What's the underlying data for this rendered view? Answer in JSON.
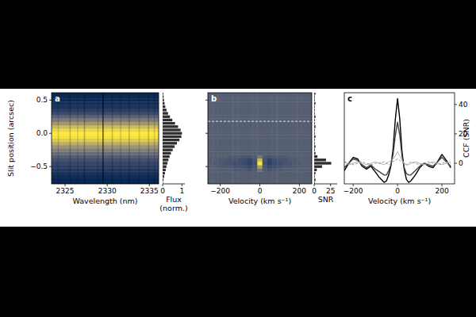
{
  "chart_data": [
    {
      "type": "heatmap",
      "panel": "a",
      "x_label": "Wavelength (nm)",
      "y_label": "Slit position (arcsec)",
      "xlim": [
        2323.4,
        2336.1
      ],
      "xticks": [
        2325,
        2330,
        2335
      ],
      "ylim": [
        -0.76,
        0.61
      ],
      "yticks": [
        {
          "value": 0.5,
          "label": "0.5"
        },
        {
          "value": 0,
          "label": "0.0"
        },
        {
          "value": -0.5,
          "label": "−0.5"
        }
      ],
      "color_range": [
        0,
        1
      ],
      "slit_positions": [
        -0.75,
        -0.7,
        -0.65,
        -0.6,
        -0.55,
        -0.5,
        -0.45,
        -0.4,
        -0.35,
        -0.3,
        -0.25,
        -0.2,
        -0.15,
        -0.1,
        -0.05,
        0,
        0.05,
        0.1,
        0.15,
        0.2,
        0.25,
        0.3,
        0.35,
        0.4,
        0.45,
        0.5,
        0.55,
        0.6
      ],
      "flux": [
        0.02,
        0.04,
        0.08,
        0.12,
        0.16,
        0.2,
        0.25,
        0.3,
        0.36,
        0.43,
        0.52,
        0.62,
        0.74,
        0.87,
        0.97,
        1.0,
        0.93,
        0.8,
        0.64,
        0.5,
        0.38,
        0.28,
        0.2,
        0.14,
        0.1,
        0.07,
        0.05,
        0.04
      ],
      "telluric_lines": {
        "wavelength": [
          2324.2,
          2325.6,
          2326.5,
          2327.3,
          2328.9,
          2329.5,
          2330.6,
          2331.6,
          2332.6,
          2333.8,
          2334.9,
          2335.6
        ],
        "depth": [
          0.15,
          0.2,
          0.12,
          0.25,
          0.15,
          0.6,
          0.2,
          0.15,
          0.2,
          0.15,
          0.2,
          0.15
        ]
      },
      "profile": {
        "type": "bar",
        "orientation": "horizontal",
        "x_label": "Flux (norm.)",
        "xlim": [
          0,
          1.15
        ],
        "xticks": [
          0,
          1
        ]
      }
    },
    {
      "type": "heatmap",
      "panel": "b",
      "x_label": "Velocity (km s⁻¹)",
      "tick_labels": "x",
      "xlim": [
        -262.5,
        262.5
      ],
      "xticks": [
        {
          "value": -200,
          "label": "−200"
        },
        0,
        200
      ],
      "ylim": [
        -0.76,
        0.61
      ],
      "yticks": [
        -0.5,
        0,
        0.5
      ],
      "color_range": [
        -15,
        26
      ],
      "dashed_line_slit": 0.18,
      "velocities": [
        -250,
        -225,
        -200,
        -175,
        -150,
        -125,
        -100,
        -75,
        -50,
        -25,
        0,
        25,
        50,
        75,
        100,
        125,
        150,
        175,
        200,
        225,
        250
      ],
      "slit_positions": [
        -0.75,
        -0.7,
        -0.65,
        -0.6,
        -0.55,
        -0.5,
        -0.45,
        -0.4,
        -0.35,
        -0.3,
        -0.25,
        -0.2,
        -0.15,
        -0.1,
        -0.05,
        0,
        0.05,
        0.1,
        0.15,
        0.2,
        0.25,
        0.3,
        0.35,
        0.4,
        0.45,
        0.5,
        0.55,
        0.6
      ],
      "snr": [
        [
          0,
          0,
          0,
          0,
          0,
          0,
          0,
          0,
          0,
          0,
          0,
          0,
          0,
          0,
          0,
          0,
          0,
          0,
          0,
          0,
          0
        ],
        [
          0,
          0,
          0,
          0,
          0,
          0,
          0,
          0,
          0,
          0,
          0,
          0,
          0,
          0,
          0,
          0,
          0,
          0,
          0,
          0,
          0
        ],
        [
          0,
          0,
          0,
          0,
          0,
          0,
          0,
          0,
          0,
          0,
          0,
          0,
          0,
          0,
          0,
          0,
          0,
          0,
          0,
          0,
          0
        ],
        [
          0,
          0,
          0,
          0,
          0,
          0,
          0,
          0,
          0,
          0,
          0,
          0,
          0,
          0,
          0,
          0,
          0,
          0,
          0,
          0,
          0
        ],
        [
          0,
          0,
          0,
          0,
          0,
          -1,
          -1,
          -1,
          -2,
          -1,
          4,
          -1,
          -2,
          -1,
          -1,
          0,
          0,
          0,
          0,
          0,
          0
        ],
        [
          0,
          0,
          -1,
          -1,
          -1,
          -2,
          -2,
          -3,
          -4,
          -2,
          12,
          -2,
          -4,
          -3,
          -2,
          -1,
          -1,
          -1,
          0,
          0,
          0
        ],
        [
          0,
          -1,
          -1,
          -2,
          -2,
          -3,
          -3,
          -4,
          -6,
          -3,
          26,
          -3,
          -6,
          -4,
          -3,
          -2,
          -2,
          -1,
          -1,
          0,
          0
        ],
        [
          0,
          0,
          -1,
          -1,
          -2,
          -2,
          -3,
          -3,
          -5,
          -2,
          18,
          -2,
          -5,
          -3,
          -2,
          -2,
          -1,
          -1,
          0,
          0,
          0
        ],
        [
          0,
          0,
          0,
          0,
          -1,
          -1,
          -1,
          -2,
          -2,
          -1,
          5,
          -1,
          -2,
          -1,
          -1,
          -1,
          0,
          0,
          0,
          0,
          0
        ],
        [
          0,
          0,
          0,
          0,
          0,
          0,
          0,
          0,
          0,
          0,
          0,
          0,
          0,
          0,
          0,
          0,
          0,
          0,
          0,
          0,
          0
        ],
        [
          0,
          0,
          0,
          0,
          0,
          0,
          0,
          0,
          0,
          0,
          0,
          0,
          0,
          0,
          0,
          0,
          0,
          0,
          0,
          0,
          0
        ],
        [
          0,
          0,
          0,
          0,
          0,
          0,
          0,
          0,
          0,
          0,
          0,
          0,
          0,
          0,
          0,
          0,
          0,
          0,
          0,
          0,
          0
        ],
        [
          0,
          0,
          0,
          0,
          0,
          0,
          0,
          0,
          0,
          0,
          0,
          0,
          0,
          0,
          0,
          0,
          0,
          0,
          0,
          0,
          0
        ],
        [
          0,
          0,
          0,
          0,
          0,
          0,
          0,
          0,
          0,
          0,
          0,
          0,
          0,
          0,
          0,
          0,
          0,
          0,
          0,
          0,
          0
        ],
        [
          0,
          0,
          0,
          0,
          0,
          0,
          0,
          0,
          0,
          0,
          0,
          0,
          0,
          0,
          0,
          0,
          0,
          0,
          0,
          0,
          0
        ],
        [
          0,
          0,
          0,
          0,
          0,
          0,
          0,
          0,
          0,
          0,
          0,
          0,
          0,
          0,
          0,
          0,
          0,
          0,
          0,
          0,
          0
        ],
        [
          0,
          0,
          0,
          0,
          0,
          0,
          0,
          0,
          0,
          0,
          0,
          0,
          0,
          0,
          0,
          0,
          0,
          0,
          0,
          0,
          0
        ],
        [
          0,
          0,
          0,
          0,
          0,
          0,
          0,
          0,
          0,
          0,
          0,
          0,
          0,
          0,
          0,
          0,
          0,
          0,
          0,
          0,
          0
        ],
        [
          0,
          0,
          0,
          0,
          0,
          0,
          0,
          0,
          0,
          0,
          0,
          0,
          0,
          0,
          0,
          0,
          0,
          0,
          0,
          0,
          0
        ],
        [
          0,
          0,
          0,
          0,
          0,
          0,
          0,
          0,
          0,
          0,
          0,
          0,
          0,
          0,
          0,
          0,
          0,
          0,
          0,
          0,
          0
        ],
        [
          0,
          0,
          0,
          0,
          0,
          0,
          0,
          0,
          0,
          0,
          0,
          0,
          0,
          0,
          0,
          0,
          0,
          0,
          0,
          0,
          0
        ],
        [
          0,
          0,
          0,
          0,
          0,
          0,
          0,
          0,
          0,
          0,
          0,
          0,
          0,
          0,
          0,
          0,
          0,
          0,
          0,
          0,
          0
        ],
        [
          0,
          0,
          0,
          0,
          0,
          0,
          0,
          0,
          0,
          0,
          0,
          0,
          0,
          0,
          0,
          0,
          0,
          0,
          0,
          0,
          0
        ],
        [
          0,
          0,
          0,
          0,
          0,
          0,
          0,
          0,
          0,
          0,
          0,
          0,
          0,
          0,
          0,
          0,
          0,
          0,
          0,
          0,
          0
        ],
        [
          0,
          0,
          0,
          0,
          0,
          0,
          0,
          0,
          0,
          0,
          0,
          0,
          0,
          0,
          0,
          0,
          0,
          0,
          0,
          0,
          0
        ],
        [
          0,
          0,
          0,
          0,
          0,
          0,
          0,
          0,
          0,
          0,
          0,
          0,
          0,
          0,
          0,
          0,
          0,
          0,
          0,
          0,
          0
        ],
        [
          0,
          0,
          0,
          0,
          0,
          0,
          0,
          0,
          0,
          0,
          0,
          0,
          0,
          0,
          0,
          0,
          0,
          0,
          0,
          0,
          0
        ],
        [
          0,
          0,
          0,
          0,
          0,
          0,
          0,
          0,
          0,
          0,
          0,
          0,
          0,
          0,
          0,
          0,
          0,
          0,
          0,
          0,
          0
        ]
      ],
      "profile": {
        "type": "bar",
        "orientation": "horizontal",
        "x_label": "SNR",
        "xlim": [
          0,
          35
        ],
        "xticks": [
          0,
          25
        ],
        "values": [
          1,
          2,
          1,
          2,
          4,
          12,
          26,
          18,
          5,
          2,
          1,
          2,
          1,
          1,
          2,
          1,
          1,
          2,
          1,
          1,
          2,
          1,
          1,
          1,
          2,
          1,
          1,
          2
        ]
      }
    },
    {
      "type": "line",
      "panel": "c",
      "x_label": "Velocity (km s⁻¹)",
      "y_label": "CCF (SNR)",
      "xlim": [
        -240,
        257
      ],
      "xticks": [
        {
          "value": -200,
          "label": "−200"
        },
        0,
        200
      ],
      "ylim": [
        -14,
        48
      ],
      "yticks": [
        0,
        20,
        40
      ],
      "x": [
        -240,
        -220,
        -200,
        -180,
        -160,
        -140,
        -120,
        -100,
        -80,
        -60,
        -50,
        -40,
        -30,
        -20,
        -10,
        0,
        10,
        20,
        30,
        40,
        50,
        60,
        80,
        100,
        120,
        140,
        160,
        180,
        200,
        220,
        240
      ],
      "series": [
        {
          "color": "#000000",
          "line_style": "solid",
          "values": [
            -5,
            0,
            4,
            3,
            -2,
            -4,
            -2,
            -6,
            -10,
            -13,
            -12,
            -8,
            -2,
            10,
            30,
            44,
            30,
            8,
            -4,
            -11,
            -13,
            -12,
            -8,
            -3,
            0,
            -2,
            -3,
            1,
            6,
            2,
            -3
          ]
        },
        {
          "color": "#444444",
          "line_style": "solid",
          "values": [
            -3,
            0,
            3,
            2,
            -1,
            -3,
            -1,
            -4,
            -6,
            -8,
            -8,
            -5,
            -1,
            6,
            19,
            28,
            19,
            5,
            -3,
            -7,
            -8,
            -8,
            -5,
            -2,
            0,
            -1,
            -2,
            1,
            4,
            1,
            -2
          ]
        },
        {
          "color": "#b0b0b0",
          "line_style": "solid",
          "values": [
            1,
            -1,
            0,
            1,
            0,
            -1,
            0,
            1,
            0,
            -1,
            0,
            1,
            2,
            3,
            5,
            8,
            5,
            2,
            0,
            -1,
            -1,
            0,
            1,
            0,
            -1,
            0,
            1,
            0,
            -1,
            0,
            1
          ]
        },
        {
          "color": "#999999",
          "line_style": "dashed",
          "values": [
            1,
            0,
            -1,
            0,
            1,
            0,
            -1,
            0,
            0,
            1,
            0,
            -1,
            0,
            1,
            2,
            3,
            2,
            1,
            0,
            -1,
            0,
            1,
            0,
            -1,
            0,
            1,
            0,
            -1,
            0,
            1,
            0
          ]
        }
      ]
    }
  ]
}
